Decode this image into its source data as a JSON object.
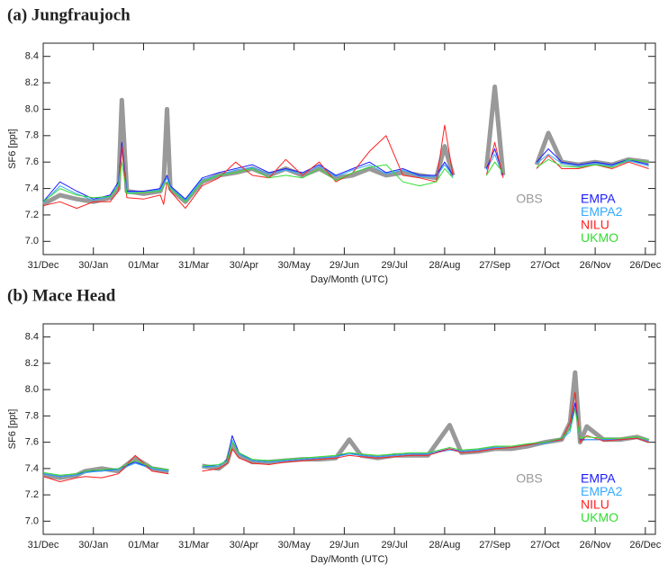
{
  "chart_data": [
    {
      "type": "line",
      "title": "(a) Jungfraujoch",
      "xlabel": "Day/Month (UTC)",
      "ylabel": "SF6 [ppt]",
      "xlim": [
        0,
        366
      ],
      "xticks": [
        {
          "value": 0,
          "label": "31/Dec"
        },
        {
          "value": 30,
          "label": "30/Jan"
        },
        {
          "value": 60,
          "label": "01/Mar"
        },
        {
          "value": 90,
          "label": "31/Mar"
        },
        {
          "value": 120,
          "label": "30/Apr"
        },
        {
          "value": 150,
          "label": "30/May"
        },
        {
          "value": 180,
          "label": "29/Jun"
        },
        {
          "value": 210,
          "label": "29/Jul"
        },
        {
          "value": 240,
          "label": "28/Aug"
        },
        {
          "value": 270,
          "label": "27/Sep"
        },
        {
          "value": 300,
          "label": "27/Oct"
        },
        {
          "value": 330,
          "label": "26/Nov"
        },
        {
          "value": 360,
          "label": "26/Dec"
        }
      ],
      "ylim": [
        6.9,
        8.5
      ],
      "yticks": [
        {
          "value": 7,
          "label": "7.0"
        },
        {
          "value": 7.2,
          "label": "7.2"
        },
        {
          "value": 7.4,
          "label": "7.4"
        },
        {
          "value": 7.6,
          "label": "7.6"
        },
        {
          "value": 7.8,
          "label": "7.8"
        },
        {
          "value": 8,
          "label": "8.0"
        },
        {
          "value": 8.2,
          "label": "8.2"
        },
        {
          "value": 8.4,
          "label": "8.4"
        }
      ],
      "x": [
        0,
        10,
        20,
        30,
        40,
        45,
        47,
        50,
        60,
        70,
        72,
        74,
        76,
        85,
        95,
        105,
        115,
        125,
        135,
        145,
        155,
        165,
        175,
        185,
        195,
        205,
        215,
        225,
        235,
        240,
        245,
        255,
        265,
        270,
        275,
        285,
        295,
        302,
        310,
        320,
        330,
        340,
        350,
        362
      ],
      "series": [
        {
          "name": "OBS",
          "color": "#999999",
          "values": [
            7.28,
            7.35,
            7.32,
            7.3,
            7.33,
            7.4,
            8.07,
            7.38,
            7.36,
            7.38,
            7.45,
            8.0,
            7.4,
            7.3,
            7.45,
            7.5,
            7.52,
            7.55,
            7.5,
            7.55,
            7.5,
            7.55,
            7.48,
            7.5,
            7.55,
            7.5,
            7.52,
            7.5,
            7.48,
            7.72,
            7.5,
            null,
            7.55,
            8.17,
            7.5,
            null,
            7.58,
            7.82,
            7.6,
            7.58,
            7.6,
            7.58,
            7.62,
            7.6
          ]
        },
        {
          "name": "EMPA",
          "color": "#1a1aff",
          "values": [
            7.3,
            7.45,
            7.38,
            7.32,
            7.35,
            7.45,
            7.75,
            7.38,
            7.38,
            7.4,
            7.45,
            7.5,
            7.42,
            7.32,
            7.48,
            7.52,
            7.55,
            7.58,
            7.52,
            7.55,
            7.52,
            7.58,
            7.5,
            7.55,
            7.6,
            7.52,
            7.55,
            7.5,
            7.5,
            7.6,
            7.5,
            null,
            7.55,
            7.7,
            7.5,
            null,
            7.6,
            7.7,
            7.6,
            7.58,
            7.6,
            7.58,
            7.62,
            7.58
          ]
        },
        {
          "name": "EMPA2",
          "color": "#33aaff",
          "values": [
            7.29,
            7.42,
            7.36,
            7.31,
            7.34,
            7.43,
            7.7,
            7.37,
            7.37,
            7.39,
            7.44,
            7.48,
            7.41,
            7.31,
            7.47,
            7.5,
            7.54,
            7.56,
            7.51,
            7.54,
            7.51,
            7.57,
            7.49,
            7.54,
            7.58,
            7.51,
            7.54,
            7.49,
            7.49,
            7.58,
            7.49,
            null,
            7.54,
            7.66,
            7.49,
            null,
            7.59,
            7.66,
            7.59,
            7.57,
            7.59,
            7.57,
            7.61,
            7.57
          ]
        },
        {
          "name": "NILU",
          "color": "#ff2020",
          "values": [
            7.27,
            7.3,
            7.25,
            7.3,
            7.3,
            7.38,
            7.72,
            7.33,
            7.32,
            7.35,
            7.28,
            7.45,
            7.38,
            7.25,
            7.42,
            7.48,
            7.6,
            7.5,
            7.48,
            7.62,
            7.5,
            7.6,
            7.45,
            7.52,
            7.68,
            7.8,
            7.5,
            7.48,
            7.45,
            7.88,
            7.5,
            null,
            7.5,
            7.75,
            7.48,
            null,
            7.55,
            7.65,
            7.55,
            7.55,
            7.58,
            7.55,
            7.6,
            7.55
          ]
        },
        {
          "name": "UKMO",
          "color": "#33dd33",
          "values": [
            7.3,
            7.4,
            7.35,
            7.33,
            7.34,
            7.42,
            7.6,
            7.36,
            7.37,
            7.38,
            7.42,
            7.45,
            7.4,
            7.3,
            7.45,
            7.5,
            7.52,
            7.55,
            7.48,
            7.5,
            7.48,
            7.55,
            7.46,
            7.52,
            7.56,
            7.58,
            7.45,
            7.42,
            7.45,
            7.55,
            7.48,
            null,
            7.5,
            7.6,
            7.52,
            null,
            7.56,
            7.62,
            7.57,
            7.56,
            7.58,
            7.56,
            7.62,
            7.6
          ]
        }
      ]
    },
    {
      "type": "line",
      "title": "(b) Mace Head",
      "xlabel": "Day/Month (UTC)",
      "ylabel": "SF6 [ppt]",
      "xlim": [
        0,
        366
      ],
      "xticks": [
        {
          "value": 0,
          "label": "31/Dec"
        },
        {
          "value": 30,
          "label": "30/Jan"
        },
        {
          "value": 60,
          "label": "01/Mar"
        },
        {
          "value": 90,
          "label": "31/Mar"
        },
        {
          "value": 120,
          "label": "30/Apr"
        },
        {
          "value": 150,
          "label": "30/May"
        },
        {
          "value": 180,
          "label": "29/Jun"
        },
        {
          "value": 210,
          "label": "29/Jul"
        },
        {
          "value": 240,
          "label": "28/Aug"
        },
        {
          "value": 270,
          "label": "27/Sep"
        },
        {
          "value": 300,
          "label": "27/Oct"
        },
        {
          "value": 330,
          "label": "26/Nov"
        },
        {
          "value": 360,
          "label": "26/Dec"
        }
      ],
      "ylim": [
        6.9,
        8.5
      ],
      "yticks": [
        {
          "value": 7,
          "label": "7.0"
        },
        {
          "value": 7.2,
          "label": "7.2"
        },
        {
          "value": 7.4,
          "label": "7.4"
        },
        {
          "value": 7.6,
          "label": "7.6"
        },
        {
          "value": 7.8,
          "label": "7.8"
        },
        {
          "value": 8,
          "label": "8.0"
        },
        {
          "value": 8.2,
          "label": "8.2"
        },
        {
          "value": 8.4,
          "label": "8.4"
        }
      ],
      "x": [
        0,
        10,
        20,
        25,
        35,
        45,
        55,
        65,
        75,
        88,
        95,
        105,
        110,
        113,
        117,
        125,
        135,
        145,
        155,
        165,
        175,
        183,
        190,
        200,
        210,
        220,
        230,
        243,
        250,
        260,
        270,
        280,
        290,
        300,
        310,
        315,
        318,
        321,
        325,
        335,
        345,
        355,
        362
      ],
      "series": [
        {
          "name": "OBS",
          "color": "#999999",
          "values": [
            7.35,
            7.33,
            7.35,
            7.38,
            7.4,
            7.38,
            7.48,
            7.4,
            7.38,
            null,
            7.42,
            7.4,
            7.45,
            7.58,
            7.5,
            7.45,
            7.45,
            7.46,
            7.47,
            7.47,
            7.48,
            7.62,
            7.5,
            7.48,
            7.5,
            7.5,
            7.5,
            7.73,
            7.52,
            7.53,
            7.55,
            7.55,
            7.57,
            7.6,
            7.62,
            7.75,
            8.13,
            7.6,
            7.72,
            7.62,
            7.62,
            7.64,
            7.61
          ]
        },
        {
          "name": "EMPA",
          "color": "#1a1aff",
          "values": [
            7.36,
            7.34,
            7.35,
            7.38,
            7.38,
            7.4,
            7.45,
            7.4,
            7.38,
            null,
            7.42,
            7.42,
            7.47,
            7.65,
            7.52,
            7.46,
            7.45,
            7.46,
            7.47,
            7.48,
            7.49,
            7.52,
            7.5,
            7.49,
            7.5,
            7.51,
            7.51,
            7.55,
            7.53,
            7.54,
            7.56,
            7.56,
            7.58,
            7.6,
            7.63,
            7.7,
            7.9,
            7.62,
            7.62,
            7.62,
            7.62,
            7.63,
            7.61
          ]
        },
        {
          "name": "EMPA2",
          "color": "#33aaff",
          "values": [
            7.36,
            7.34,
            7.35,
            7.37,
            7.38,
            7.39,
            7.44,
            7.4,
            7.38,
            null,
            7.41,
            7.42,
            7.46,
            7.62,
            7.51,
            7.46,
            7.45,
            7.46,
            7.47,
            7.48,
            7.49,
            7.51,
            7.5,
            7.49,
            7.5,
            7.51,
            7.51,
            7.54,
            7.53,
            7.54,
            7.56,
            7.56,
            7.58,
            7.59,
            7.62,
            7.68,
            7.86,
            7.61,
            7.62,
            7.62,
            7.62,
            7.63,
            7.61
          ]
        },
        {
          "name": "NILU",
          "color": "#ff2020",
          "values": [
            7.34,
            7.3,
            7.33,
            7.34,
            7.33,
            7.36,
            7.5,
            7.38,
            7.36,
            null,
            7.38,
            7.4,
            7.44,
            7.55,
            7.48,
            7.44,
            7.43,
            7.45,
            7.46,
            7.47,
            7.48,
            7.5,
            7.49,
            7.48,
            7.49,
            7.5,
            7.5,
            7.55,
            7.52,
            7.53,
            7.55,
            7.56,
            7.58,
            7.6,
            7.62,
            7.75,
            7.98,
            7.6,
            7.65,
            7.61,
            7.62,
            7.63,
            7.6
          ]
        },
        {
          "name": "UKMO",
          "color": "#33dd33",
          "values": [
            7.37,
            7.35,
            7.36,
            7.38,
            7.39,
            7.4,
            7.46,
            7.41,
            7.39,
            null,
            7.42,
            7.43,
            7.46,
            7.6,
            7.52,
            7.47,
            7.46,
            7.47,
            7.48,
            7.49,
            7.5,
            7.52,
            7.51,
            7.5,
            7.51,
            7.52,
            7.52,
            7.56,
            7.54,
            7.55,
            7.57,
            7.57,
            7.59,
            7.6,
            7.63,
            7.7,
            7.85,
            7.63,
            7.64,
            7.63,
            7.63,
            7.64,
            7.62
          ]
        }
      ]
    }
  ]
}
